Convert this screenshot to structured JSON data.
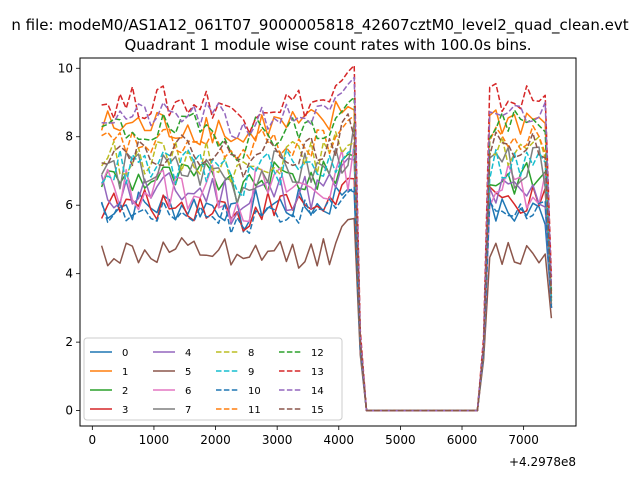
{
  "suptitle": "n file: modeM0/AS1A12_061T07_9000005818_42607cztM0_level2_quad_clean.evt",
  "chart_data": {
    "type": "line",
    "title": "Quadrant 1 module wise count rates with 100.0s bins.",
    "xlabel": "",
    "ylabel": "",
    "x_offset_label": "+4.2978e8",
    "xlim": [
      -200,
      7850
    ],
    "ylim": [
      -0.45,
      10.3
    ],
    "xticks": [
      0,
      1000,
      2000,
      3000,
      4000,
      5000,
      6000,
      7000
    ],
    "yticks": [
      0,
      2,
      4,
      6,
      8,
      10
    ],
    "grid": false,
    "legend": {
      "placement": "lower-left",
      "columns": 4
    },
    "x_segments": [
      {
        "start": 150,
        "end": 4250,
        "step": 100
      },
      {
        "start": 4350,
        "end": 4350,
        "step": 100
      },
      {
        "start": 4450,
        "end": 4450,
        "step": 100
      },
      {
        "start": 6250,
        "end": 6250,
        "step": 100
      },
      {
        "start": 6350,
        "end": 6350,
        "step": 100
      },
      {
        "start": 6450,
        "end": 7450,
        "step": 100
      }
    ],
    "gap_x": [
      4450,
      6250
    ],
    "series": [
      {
        "name": "0",
        "color": "#1f77b4",
        "dash": "solid",
        "base": 6.0,
        "amp": 0.5,
        "tail": 3.1,
        "end": 5.8
      },
      {
        "name": "1",
        "color": "#ff7f0e",
        "dash": "solid",
        "base": 8.3,
        "amp": 0.55,
        "tail": 3.2,
        "end": 8.5
      },
      {
        "name": "2",
        "color": "#2ca02c",
        "dash": "solid",
        "base": 6.8,
        "amp": 0.5,
        "tail": 3.0,
        "end": 6.8
      },
      {
        "name": "3",
        "color": "#d62728",
        "dash": "solid",
        "base": 6.0,
        "amp": 0.45,
        "tail": 3.0,
        "end": 6.1
      },
      {
        "name": "4",
        "color": "#9467bd",
        "dash": "solid",
        "base": 6.4,
        "amp": 0.6,
        "tail": 3.0,
        "end": 6.3
      },
      {
        "name": "5",
        "color": "#8c564b",
        "dash": "solid",
        "base": 4.6,
        "amp": 0.45,
        "tail": 2.7,
        "end": 4.6
      },
      {
        "name": "6",
        "color": "#e377c2",
        "dash": "solid",
        "base": 6.5,
        "amp": 0.7,
        "tail": 3.0,
        "end": 6.6
      },
      {
        "name": "7",
        "color": "#7f7f7f",
        "dash": "solid",
        "base": 7.0,
        "amp": 0.6,
        "tail": 3.1,
        "end": 7.1
      },
      {
        "name": "8",
        "color": "#bcbd22",
        "dash": "dashed",
        "base": 7.4,
        "amp": 0.5,
        "tail": 3.2,
        "end": 7.6
      },
      {
        "name": "9",
        "color": "#17becf",
        "dash": "dashed",
        "base": 7.1,
        "amp": 0.55,
        "tail": 3.3,
        "end": 7.2
      },
      {
        "name": "10",
        "color": "#1f77b4",
        "dash": "dashed",
        "base": 5.8,
        "amp": 0.35,
        "tail": 3.0,
        "end": 5.9
      },
      {
        "name": "11",
        "color": "#ff7f0e",
        "dash": "dashed",
        "base": 7.8,
        "amp": 0.45,
        "tail": 3.4,
        "end": 7.9
      },
      {
        "name": "12",
        "color": "#2ca02c",
        "dash": "dashed",
        "base": 8.2,
        "amp": 0.5,
        "tail": 3.5,
        "end": 8.3
      },
      {
        "name": "13",
        "color": "#d62728",
        "dash": "dashed",
        "base": 9.0,
        "amp": 0.5,
        "tail": 3.9,
        "end": 9.1
      },
      {
        "name": "14",
        "color": "#9467bd",
        "dash": "dashed",
        "base": 8.6,
        "amp": 0.4,
        "tail": 3.6,
        "end": 8.7
      },
      {
        "name": "15",
        "color": "#8c564b",
        "dash": "dashed",
        "base": 7.6,
        "amp": 0.45,
        "tail": 3.3,
        "end": 7.7
      }
    ]
  }
}
